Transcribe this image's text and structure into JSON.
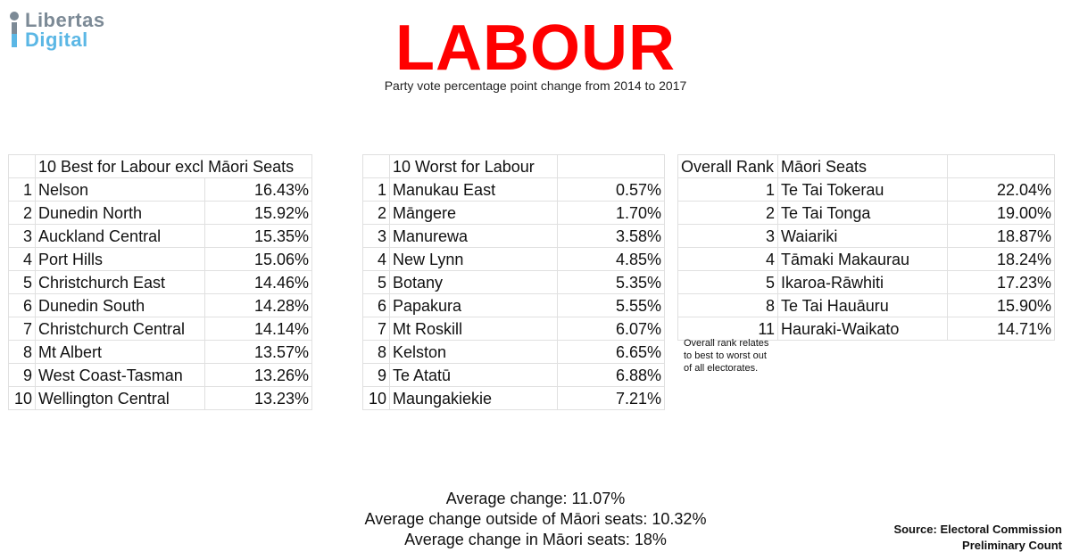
{
  "logo": {
    "line1": "Libertas",
    "line2": "Digital",
    "colors": {
      "grey": "#7c8a96",
      "blue": "#5bb7e5"
    }
  },
  "title": "LABOUR",
  "title_color": "#ff0000",
  "subtitle": "Party vote percentage point change from 2014 to 2017",
  "best": {
    "header": "10 Best for Labour excl Māori Seats",
    "rows": [
      {
        "rank": "1",
        "name": "Nelson",
        "value": "16.43%"
      },
      {
        "rank": "2",
        "name": "Dunedin North",
        "value": "15.92%"
      },
      {
        "rank": "3",
        "name": "Auckland Central",
        "value": "15.35%"
      },
      {
        "rank": "4",
        "name": "Port Hills",
        "value": "15.06%"
      },
      {
        "rank": "5",
        "name": "Christchurch East",
        "value": "14.46%"
      },
      {
        "rank": "6",
        "name": "Dunedin South",
        "value": "14.28%"
      },
      {
        "rank": "7",
        "name": "Christchurch Central",
        "value": "14.14%"
      },
      {
        "rank": "8",
        "name": "Mt Albert",
        "value": "13.57%"
      },
      {
        "rank": "9",
        "name": "West Coast-Tasman",
        "value": "13.26%"
      },
      {
        "rank": "10",
        "name": "Wellington Central",
        "value": "13.23%"
      }
    ]
  },
  "worst": {
    "header": "10 Worst for Labour",
    "rows": [
      {
        "rank": "1",
        "name": "Manukau East",
        "value": "0.57%"
      },
      {
        "rank": "2",
        "name": "Māngere",
        "value": "1.70%"
      },
      {
        "rank": "3",
        "name": "Manurewa",
        "value": "3.58%"
      },
      {
        "rank": "4",
        "name": "New Lynn",
        "value": "4.85%"
      },
      {
        "rank": "5",
        "name": "Botany",
        "value": "5.35%"
      },
      {
        "rank": "6",
        "name": "Papakura",
        "value": "5.55%"
      },
      {
        "rank": "7",
        "name": "Mt Roskill",
        "value": "6.07%"
      },
      {
        "rank": "8",
        "name": "Kelston",
        "value": "6.65%"
      },
      {
        "rank": "9",
        "name": "Te Atatū",
        "value": "6.88%"
      },
      {
        "rank": "10",
        "name": "Maungakiekie",
        "value": "7.21%"
      }
    ]
  },
  "maori": {
    "header_rank": "Overall Rank",
    "header_name": "Māori Seats",
    "rows": [
      {
        "rank": "1",
        "name": "Te Tai Tokerau",
        "value": "22.04%"
      },
      {
        "rank": "2",
        "name": "Te Tai Tonga",
        "value": "19.00%"
      },
      {
        "rank": "3",
        "name": "Waiariki",
        "value": "18.87%"
      },
      {
        "rank": "4",
        "name": "Tāmaki Makaurau",
        "value": "18.24%"
      },
      {
        "rank": "5",
        "name": "Ikaroa-Rāwhiti",
        "value": "17.23%"
      },
      {
        "rank": "8",
        "name": "Te Tai Hauāuru",
        "value": "15.90%"
      },
      {
        "rank": "11",
        "name": "Hauraki-Waikato",
        "value": "14.71%"
      }
    ],
    "note": [
      "Overall rank relates",
      "to best to worst out",
      "of all electorates."
    ]
  },
  "averages": [
    "Average change: 11.07%",
    "Average change outside of Māori seats: 10.32%",
    "Average change in Māori seats: 18%"
  ],
  "source": [
    "Source: Electoral Commission",
    "Preliminary Count"
  ]
}
